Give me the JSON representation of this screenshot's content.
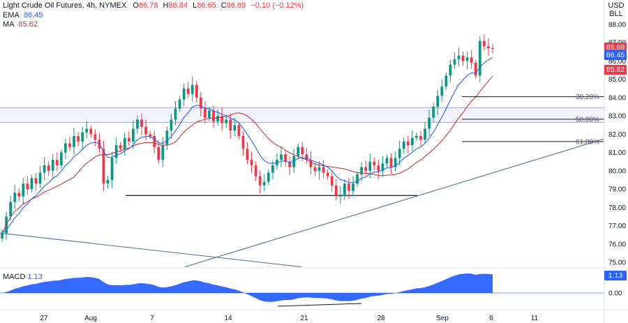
{
  "header": {
    "symbol": "Light Crude Oil Futures, 4h, NYMEX",
    "o_label": "O",
    "o_value": "86.78",
    "h_label": "H",
    "h_value": "86.84",
    "l_label": "L",
    "l_value": "86.65",
    "c_label": "C",
    "c_value": "86.69",
    "change": "−0.10 (−0.12%)"
  },
  "indicators": {
    "ema": {
      "label": "EMA",
      "value": "86.45",
      "color": "#2962ff"
    },
    "ma": {
      "label": "MA",
      "value": "85.62",
      "color": "#c3383f"
    }
  },
  "price_axis": {
    "unit_line1": "USD",
    "unit_line2": "BLL",
    "ticks": [
      "88.00",
      "87.00",
      "86.00",
      "85.00",
      "84.00",
      "83.00",
      "82.00",
      "81.00",
      "80.00",
      "79.00",
      "78.00",
      "77.00",
      "76.00",
      "75.00"
    ],
    "badges": [
      {
        "value": "86.69",
        "color": "#f23645"
      },
      {
        "value": "86.45",
        "color": "#2962ff"
      },
      {
        "value": "85.62",
        "color": "#f23645"
      }
    ]
  },
  "time_axis": {
    "labels": [
      "27",
      "Aug",
      "7",
      "14",
      "21",
      "28",
      "Sep",
      "6",
      "11"
    ]
  },
  "fib_levels": [
    {
      "label": "38.20%",
      "price": 84.05
    },
    {
      "label": "50.00%",
      "price": 82.82
    },
    {
      "label": "61.80%",
      "price": 81.6
    }
  ],
  "macd": {
    "label": "MACD",
    "value": "1.13",
    "zero_label": "0.00",
    "badge_color": "#2962ff",
    "fill_color": "#2962ff"
  },
  "colors": {
    "up": "#089981",
    "down": "#f23645",
    "trendline": "#5b7b9a",
    "level": "#131722"
  },
  "chart_data": {
    "type": "candlestick",
    "symbol": "Light Crude Oil Futures",
    "interval": "4h",
    "ylim": [
      74.8,
      88.4
    ],
    "closes": [
      76.6,
      77.5,
      78.3,
      78.8,
      78.6,
      79.3,
      79.0,
      79.6,
      79.3,
      79.9,
      80.3,
      80.0,
      80.6,
      80.3,
      81.0,
      81.5,
      81.3,
      81.9,
      81.6,
      82.1,
      82.3,
      82.0,
      81.7,
      81.2,
      79.3,
      79.5,
      80.7,
      81.4,
      81.2,
      81.8,
      81.6,
      82.3,
      82.8,
      82.4,
      82.0,
      81.9,
      81.3,
      80.6,
      81.4,
      82.2,
      82.8,
      83.4,
      83.9,
      84.5,
      84.2,
      84.7,
      84.0,
      83.4,
      82.9,
      83.3,
      82.7,
      83.0,
      82.6,
      82.8,
      82.2,
      82.5,
      81.9,
      81.2,
      80.6,
      80.3,
      79.7,
      79.2,
      79.4,
      79.9,
      80.3,
      80.6,
      80.9,
      80.5,
      80.2,
      80.8,
      81.3,
      80.9,
      80.6,
      80.2,
      80.0,
      80.2,
      79.9,
      79.7,
      79.2,
      78.6,
      78.7,
      79.3,
      78.9,
      79.3,
      79.8,
      80.2,
      80.0,
      80.5,
      80.3,
      80.0,
      80.4,
      80.7,
      80.2,
      80.7,
      81.2,
      81.6,
      81.4,
      81.8,
      81.9,
      81.7,
      82.3,
      82.9,
      83.5,
      84.1,
      84.6,
      85.2,
      85.8,
      86.1,
      86.3,
      86.0,
      86.2,
      85.9,
      85.2,
      87.1,
      86.8,
      86.7,
      86.69
    ],
    "ema_current": 86.45,
    "ma_current": 85.62,
    "macd_current": 1.13,
    "x_labels": [
      "27",
      "Aug",
      "7",
      "14",
      "21",
      "28",
      "Sep",
      "6",
      "11"
    ],
    "y_ticks": [
      88,
      87,
      86,
      85,
      84,
      83,
      82,
      81,
      80,
      79,
      78,
      77,
      76,
      75
    ]
  }
}
